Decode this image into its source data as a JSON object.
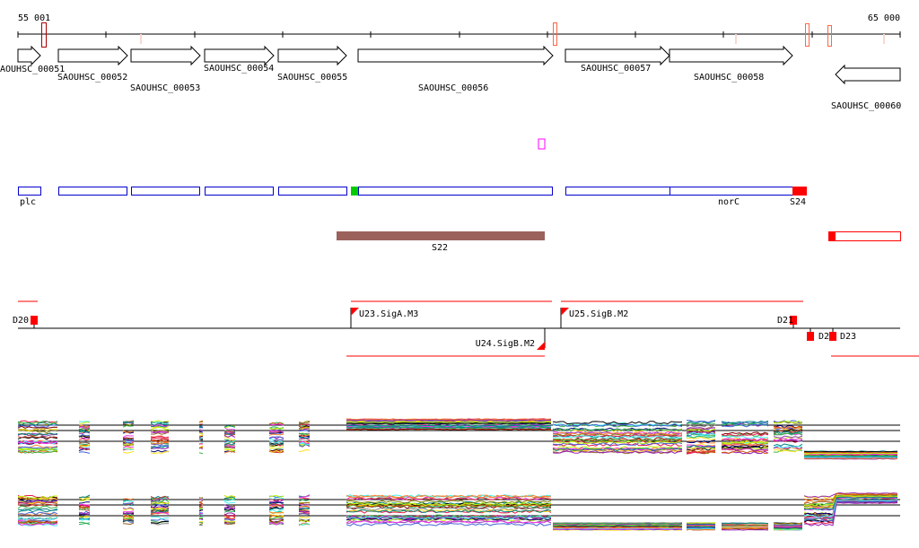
{
  "axis": {
    "start_label": "55 001",
    "end_label": "65 000"
  },
  "genes": [
    {
      "name": "AOUHSC_00051",
      "strand": "+"
    },
    {
      "name": "SAOUHSC_00052",
      "strand": "+"
    },
    {
      "name": "SAOUHSC_00053",
      "strand": "+"
    },
    {
      "name": "SAOUHSC_00054",
      "strand": "+"
    },
    {
      "name": "SAOUHSC_00055",
      "strand": "+"
    },
    {
      "name": "SAOUHSC_00056",
      "strand": "+"
    },
    {
      "name": "SAOUHSC_00057",
      "strand": "+"
    },
    {
      "name": "SAOUHSC_00058",
      "strand": "+"
    },
    {
      "name": "SAOUHSC_00060",
      "strand": "-"
    }
  ],
  "operon_labels": {
    "plc": "plc",
    "norC": "norC",
    "S24": "S24"
  },
  "regions": {
    "S22": "S22"
  },
  "promoters": [
    {
      "name": "D20"
    },
    {
      "name": "U23.SigA.M3"
    },
    {
      "name": "U24.SigB.M2"
    },
    {
      "name": "U25.SigB.M2"
    },
    {
      "name": "D21"
    },
    {
      "name": "D22"
    },
    {
      "name": "D23"
    }
  ],
  "colors": {
    "operon": "#0000cc",
    "highlight": "#ff0000",
    "region": "#9b625c",
    "green": "#00cc00",
    "magenta": "#ff00ff"
  }
}
